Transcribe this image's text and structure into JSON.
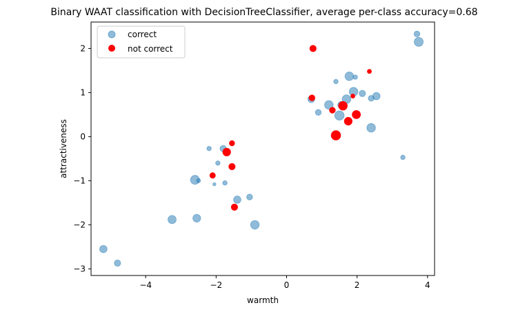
{
  "chart_data": {
    "type": "scatter",
    "title": "Binary WAAT classification with DecisionTreeClassifier, average per-class accuracy=0.68",
    "xlabel": "warmth",
    "ylabel": "attractiveness",
    "xlim": [
      -5.55,
      4.2
    ],
    "ylim": [
      -3.15,
      2.6
    ],
    "xticks": [
      -4,
      -2,
      0,
      2,
      4
    ],
    "yticks": [
      -3,
      -2,
      -1,
      0,
      1,
      2
    ],
    "grid": false,
    "legend": {
      "position": "top-left",
      "entries": [
        "correct",
        "not correct"
      ]
    },
    "series": [
      {
        "name": "correct",
        "color": "#1f77b4",
        "opacity": 0.5,
        "points": [
          {
            "x": -5.2,
            "y": -2.55,
            "s": 80
          },
          {
            "x": -4.8,
            "y": -2.87,
            "s": 60
          },
          {
            "x": -3.25,
            "y": -1.88,
            "s": 100
          },
          {
            "x": -2.6,
            "y": -0.98,
            "s": 120
          },
          {
            "x": -2.55,
            "y": -1.85,
            "s": 90
          },
          {
            "x": -2.5,
            "y": -1.0,
            "s": 25
          },
          {
            "x": -2.2,
            "y": -0.27,
            "s": 30
          },
          {
            "x": -2.05,
            "y": -1.08,
            "s": 15
          },
          {
            "x": -1.95,
            "y": -0.6,
            "s": 30
          },
          {
            "x": -1.8,
            "y": -0.27,
            "s": 60
          },
          {
            "x": -1.75,
            "y": -1.05,
            "s": 30
          },
          {
            "x": -1.4,
            "y": -1.43,
            "s": 80
          },
          {
            "x": -1.05,
            "y": -1.37,
            "s": 50
          },
          {
            "x": -0.9,
            "y": -2.0,
            "s": 110
          },
          {
            "x": 0.7,
            "y": 0.85,
            "s": 70
          },
          {
            "x": 0.9,
            "y": 0.55,
            "s": 50
          },
          {
            "x": 1.2,
            "y": 0.72,
            "s": 110
          },
          {
            "x": 1.4,
            "y": 1.25,
            "s": 30
          },
          {
            "x": 1.5,
            "y": 0.48,
            "s": 130
          },
          {
            "x": 1.55,
            "y": 0.72,
            "s": 70
          },
          {
            "x": 1.7,
            "y": 0.85,
            "s": 110
          },
          {
            "x": 1.78,
            "y": 1.37,
            "s": 110
          },
          {
            "x": 1.9,
            "y": 1.02,
            "s": 110
          },
          {
            "x": 1.95,
            "y": 1.35,
            "s": 30
          },
          {
            "x": 2.15,
            "y": 0.98,
            "s": 60
          },
          {
            "x": 2.4,
            "y": 0.87,
            "s": 50
          },
          {
            "x": 2.4,
            "y": 0.2,
            "s": 110
          },
          {
            "x": 2.55,
            "y": 0.92,
            "s": 80
          },
          {
            "x": 3.3,
            "y": -0.47,
            "s": 30
          },
          {
            "x": 3.7,
            "y": 2.33,
            "s": 50
          },
          {
            "x": 3.75,
            "y": 2.15,
            "s": 120
          }
        ]
      },
      {
        "name": "not correct",
        "color": "#ff0000",
        "opacity": 1.0,
        "points": [
          {
            "x": -2.1,
            "y": -0.88,
            "s": 45
          },
          {
            "x": -1.7,
            "y": -0.35,
            "s": 90
          },
          {
            "x": -1.55,
            "y": -0.15,
            "s": 40
          },
          {
            "x": -1.55,
            "y": -0.68,
            "s": 60
          },
          {
            "x": -1.48,
            "y": -1.6,
            "s": 60
          },
          {
            "x": 0.72,
            "y": 0.88,
            "s": 50
          },
          {
            "x": 0.75,
            "y": 2.0,
            "s": 60
          },
          {
            "x": 1.3,
            "y": 0.6,
            "s": 50
          },
          {
            "x": 1.4,
            "y": 0.03,
            "s": 130
          },
          {
            "x": 1.6,
            "y": 0.7,
            "s": 110
          },
          {
            "x": 1.75,
            "y": 0.35,
            "s": 90
          },
          {
            "x": 1.88,
            "y": 0.92,
            "s": 25
          },
          {
            "x": 1.98,
            "y": 0.5,
            "s": 100
          },
          {
            "x": 2.35,
            "y": 1.48,
            "s": 25
          }
        ]
      }
    ]
  }
}
